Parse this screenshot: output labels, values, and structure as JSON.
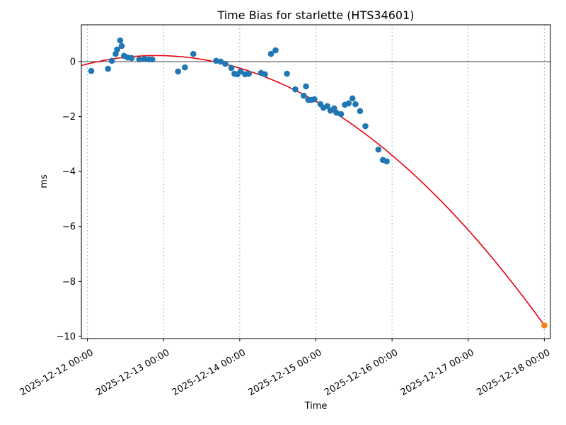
{
  "chart_data": {
    "type": "scatter",
    "title": "Time Bias for starlette (HTS34601)",
    "xlabel": "Time",
    "ylabel": "ms",
    "x_tick_labels": [
      "2025-12-12 00:00",
      "2025-12-13 00:00",
      "2025-12-14 00:00",
      "2025-12-15 00:00",
      "2025-12-16 00:00",
      "2025-12-17 00:00",
      "2025-12-18 00:00"
    ],
    "x_tick_days": [
      0,
      1,
      2,
      3,
      4,
      5,
      6
    ],
    "y_ticks": [
      0,
      -2,
      -4,
      -6,
      -8,
      -10
    ],
    "x_domain_days": [
      -0.08,
      6.08
    ],
    "y_domain": [
      -10.08,
      1.34
    ],
    "grid": "vertical-dashed",
    "legend": "none",
    "zero_line": true,
    "colors": {
      "scatter": "#1f77b4",
      "fit_line": "#e8000b",
      "prediction": "#ff7f0e",
      "grid": "#6f9ec7",
      "axis": "#000000"
    },
    "series": [
      {
        "name": "observations",
        "type": "scatter",
        "color": "#1f77b4",
        "points_day_ms": [
          [
            0.05,
            -0.34
          ],
          [
            0.27,
            -0.26
          ],
          [
            0.32,
            0.03
          ],
          [
            0.37,
            0.28
          ],
          [
            0.39,
            0.44
          ],
          [
            0.43,
            0.77
          ],
          [
            0.45,
            0.57
          ],
          [
            0.48,
            0.21
          ],
          [
            0.53,
            0.15
          ],
          [
            0.58,
            0.13
          ],
          [
            0.68,
            0.08
          ],
          [
            0.75,
            0.1
          ],
          [
            0.81,
            0.08
          ],
          [
            0.85,
            0.08
          ],
          [
            1.19,
            -0.36
          ],
          [
            1.28,
            -0.21
          ],
          [
            1.39,
            0.28
          ],
          [
            1.69,
            0.03
          ],
          [
            1.75,
            0.0
          ],
          [
            1.81,
            -0.08
          ],
          [
            1.89,
            -0.23
          ],
          [
            1.93,
            -0.44
          ],
          [
            1.97,
            -0.46
          ],
          [
            2.01,
            -0.36
          ],
          [
            2.07,
            -0.46
          ],
          [
            2.12,
            -0.44
          ],
          [
            2.28,
            -0.41
          ],
          [
            2.33,
            -0.46
          ],
          [
            2.41,
            0.28
          ],
          [
            2.47,
            0.41
          ],
          [
            2.62,
            -0.44
          ],
          [
            2.73,
            -1.01
          ],
          [
            2.84,
            -1.24
          ],
          [
            2.87,
            -0.9
          ],
          [
            2.9,
            -1.39
          ],
          [
            2.94,
            -1.39
          ],
          [
            2.98,
            -1.37
          ],
          [
            3.06,
            -1.55
          ],
          [
            3.1,
            -1.68
          ],
          [
            3.15,
            -1.62
          ],
          [
            3.19,
            -1.78
          ],
          [
            3.24,
            -1.7
          ],
          [
            3.27,
            -1.86
          ],
          [
            3.33,
            -1.91
          ],
          [
            3.38,
            -1.57
          ],
          [
            3.43,
            -1.52
          ],
          [
            3.48,
            -1.34
          ],
          [
            3.52,
            -1.55
          ],
          [
            3.58,
            -1.8
          ],
          [
            3.65,
            -2.35
          ],
          [
            3.82,
            -3.2
          ],
          [
            3.88,
            -3.58
          ],
          [
            3.93,
            -3.63
          ]
        ]
      },
      {
        "name": "quadratic-fit",
        "type": "line",
        "color": "#e8000b",
        "poly_coeffs_c0_c1_c2": [
          -0.0859,
          0.6797,
          -0.3776
        ],
        "domain_days": [
          -0.08,
          6.0
        ]
      },
      {
        "name": "prediction",
        "type": "scatter",
        "color": "#ff7f0e",
        "points_day_ms": [
          [
            6.0,
            -9.6
          ]
        ]
      }
    ]
  }
}
